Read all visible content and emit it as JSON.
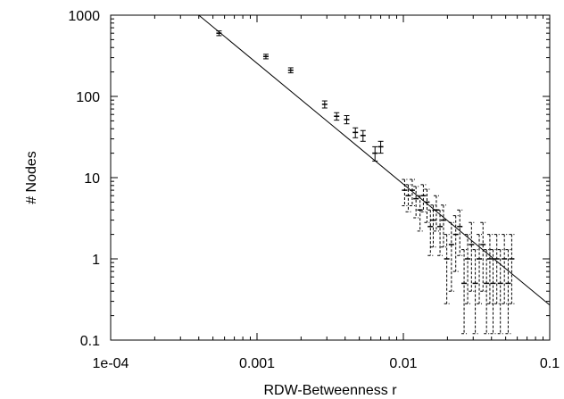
{
  "chart_data": {
    "type": "scatter",
    "title": "",
    "xlabel": "RDW-Betweenness r",
    "ylabel": "# Nodes",
    "xscale": "log",
    "yscale": "log",
    "xlim": [
      0.0001,
      0.1
    ],
    "ylim": [
      0.1,
      1000
    ],
    "x_ticks": [
      {
        "value": 0.0001,
        "label": "1e-04"
      },
      {
        "value": 0.001,
        "label": "0.001"
      },
      {
        "value": 0.01,
        "label": "0.01"
      },
      {
        "value": 0.1,
        "label": "0.1"
      }
    ],
    "y_ticks": [
      {
        "value": 0.1,
        "label": "0.1"
      },
      {
        "value": 1,
        "label": "1"
      },
      {
        "value": 10,
        "label": "10"
      },
      {
        "value": 100,
        "label": "100"
      },
      {
        "value": 1000,
        "label": "1000"
      }
    ],
    "grid": false,
    "legend": "none",
    "fit_line": {
      "x": [
        0.0004,
        0.1
      ],
      "y": [
        1000,
        0.27
      ]
    },
    "points": [
      {
        "x": 0.00055,
        "y": 600,
        "ylo": 560,
        "yhi": 640
      },
      {
        "x": 0.00115,
        "y": 310,
        "ylo": 290,
        "yhi": 330
      },
      {
        "x": 0.0017,
        "y": 210,
        "ylo": 195,
        "yhi": 225
      },
      {
        "x": 0.0029,
        "y": 80,
        "ylo": 72,
        "yhi": 88
      },
      {
        "x": 0.0035,
        "y": 57,
        "ylo": 51,
        "yhi": 63
      },
      {
        "x": 0.0041,
        "y": 52,
        "ylo": 46,
        "yhi": 58
      },
      {
        "x": 0.0047,
        "y": 36,
        "ylo": 31,
        "yhi": 41
      },
      {
        "x": 0.0053,
        "y": 33,
        "ylo": 28,
        "yhi": 38
      },
      {
        "x": 0.0064,
        "y": 20,
        "ylo": 16,
        "yhi": 24
      },
      {
        "x": 0.007,
        "y": 24,
        "ylo": 20,
        "yhi": 28
      },
      {
        "x": 0.0102,
        "y": 7,
        "ylo": 4.5,
        "yhi": 9.5
      },
      {
        "x": 0.0108,
        "y": 6,
        "ylo": 3.8,
        "yhi": 8.2
      },
      {
        "x": 0.0115,
        "y": 7,
        "ylo": 4.5,
        "yhi": 9.5
      },
      {
        "x": 0.0122,
        "y": 5.5,
        "ylo": 3.2,
        "yhi": 7.8
      },
      {
        "x": 0.013,
        "y": 4,
        "ylo": 2.2,
        "yhi": 6
      },
      {
        "x": 0.0137,
        "y": 6,
        "ylo": 3.8,
        "yhi": 8.2
      },
      {
        "x": 0.0145,
        "y": 5,
        "ylo": 2.8,
        "yhi": 7.2
      },
      {
        "x": 0.0153,
        "y": 2.5,
        "ylo": 1.1,
        "yhi": 4
      },
      {
        "x": 0.016,
        "y": 3,
        "ylo": 1.4,
        "yhi": 4.6
      },
      {
        "x": 0.0168,
        "y": 4,
        "ylo": 2.2,
        "yhi": 6
      },
      {
        "x": 0.0178,
        "y": 2.5,
        "ylo": 1.1,
        "yhi": 4
      },
      {
        "x": 0.0188,
        "y": 3,
        "ylo": 1.4,
        "yhi": 4.6
      },
      {
        "x": 0.0198,
        "y": 1,
        "ylo": 0.28,
        "yhi": 2
      },
      {
        "x": 0.0213,
        "y": 1.5,
        "ylo": 0.4,
        "yhi": 2.8
      },
      {
        "x": 0.0228,
        "y": 2,
        "ylo": 0.7,
        "yhi": 3.4
      },
      {
        "x": 0.0243,
        "y": 2.5,
        "ylo": 1.1,
        "yhi": 4
      },
      {
        "x": 0.026,
        "y": 0.5,
        "ylo": 0.12,
        "yhi": 1.3
      },
      {
        "x": 0.0275,
        "y": 1,
        "ylo": 0.28,
        "yhi": 2
      },
      {
        "x": 0.0292,
        "y": 1.5,
        "ylo": 0.4,
        "yhi": 2.8
      },
      {
        "x": 0.031,
        "y": 0.5,
        "ylo": 0.12,
        "yhi": 1.3
      },
      {
        "x": 0.033,
        "y": 1,
        "ylo": 0.28,
        "yhi": 2
      },
      {
        "x": 0.035,
        "y": 1.5,
        "ylo": 0.4,
        "yhi": 2.8
      },
      {
        "x": 0.037,
        "y": 0.5,
        "ylo": 0.12,
        "yhi": 1.3
      },
      {
        "x": 0.039,
        "y": 1,
        "ylo": 0.28,
        "yhi": 2
      },
      {
        "x": 0.041,
        "y": 0.5,
        "ylo": 0.12,
        "yhi": 1.3
      },
      {
        "x": 0.0435,
        "y": 1,
        "ylo": 0.28,
        "yhi": 2
      },
      {
        "x": 0.046,
        "y": 0.5,
        "ylo": 0.12,
        "yhi": 1.3
      },
      {
        "x": 0.049,
        "y": 1,
        "ylo": 0.28,
        "yhi": 2
      },
      {
        "x": 0.052,
        "y": 0.5,
        "ylo": 0.12,
        "yhi": 1.3
      },
      {
        "x": 0.055,
        "y": 1,
        "ylo": 0.28,
        "yhi": 2
      }
    ]
  }
}
